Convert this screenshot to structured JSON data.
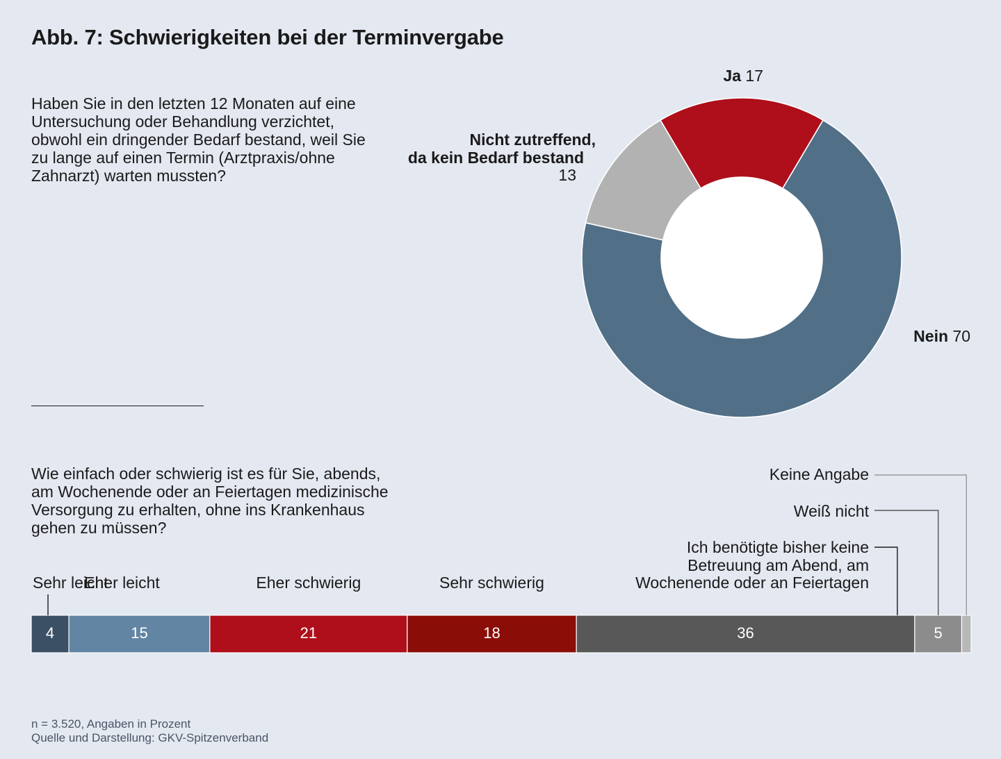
{
  "title": "Abb. 7: Schwierigkeiten bei der Terminvergabe",
  "question1": "Haben Sie in den letzten 12 Monaten auf eine Untersuchung oder Behandlung verzichtet, obwohl ein dringender Bedarf bestand, weil Sie zu lange auf einen Termin (Arztpraxis/ohne Zahnarzt) warten mussten?",
  "question2": "Wie einfach oder schwierig ist es für Sie, abends, am Wochenende oder an Feiertagen medizinische Versorgung zu erhalten, ohne ins Krankenhaus gehen zu müssen?",
  "footnote": {
    "line1": "n = 3.520, Angaben in Prozent",
    "line2": "Quelle und Darstellung: GKV-Spitzenverband"
  },
  "chart_data": [
    {
      "type": "pie",
      "subtype": "donut",
      "unit": "Prozent",
      "slices": [
        {
          "label": "Ja",
          "value": 17,
          "color": "#ae0f1a"
        },
        {
          "label": "Nein",
          "value": 70,
          "color": "#516f87"
        },
        {
          "label": "Nicht zutreffend, da kein Bedarf bestand",
          "label_lines": [
            "Nicht zutreffend,",
            "da kein Bedarf bestand"
          ],
          "value": 13,
          "color": "#b2b2b2"
        }
      ]
    },
    {
      "type": "bar",
      "subtype": "stacked-horizontal-100",
      "unit": "Prozent",
      "segments": [
        {
          "label": "Sehr leicht",
          "value": 4,
          "color": "#3b5064",
          "value_label": "4"
        },
        {
          "label": "Eher leicht",
          "value": 15,
          "color": "#6285a3",
          "value_label": "15"
        },
        {
          "label": "Eher schwierig",
          "value": 21,
          "color": "#ae0f1a",
          "value_label": "21"
        },
        {
          "label": "Sehr schwierig",
          "value": 18,
          "color": "#8b0d08",
          "value_label": "18"
        },
        {
          "label": "Ich benötigte bisher keine Betreuung am Abend, am Wochenende oder an Feiertagen",
          "label_lines": [
            "Ich benötigte bisher keine",
            "Betreuung am Abend, am",
            "Wochenende oder an Feiertagen"
          ],
          "value": 36,
          "color": "#585858",
          "value_label": "36"
        },
        {
          "label": "Weiß nicht",
          "value": 5,
          "color": "#8c8c8c",
          "value_label": "5"
        },
        {
          "label": "Keine Angabe",
          "value": 1,
          "color": "#b8b8b8",
          "value_label": ""
        }
      ]
    }
  ]
}
